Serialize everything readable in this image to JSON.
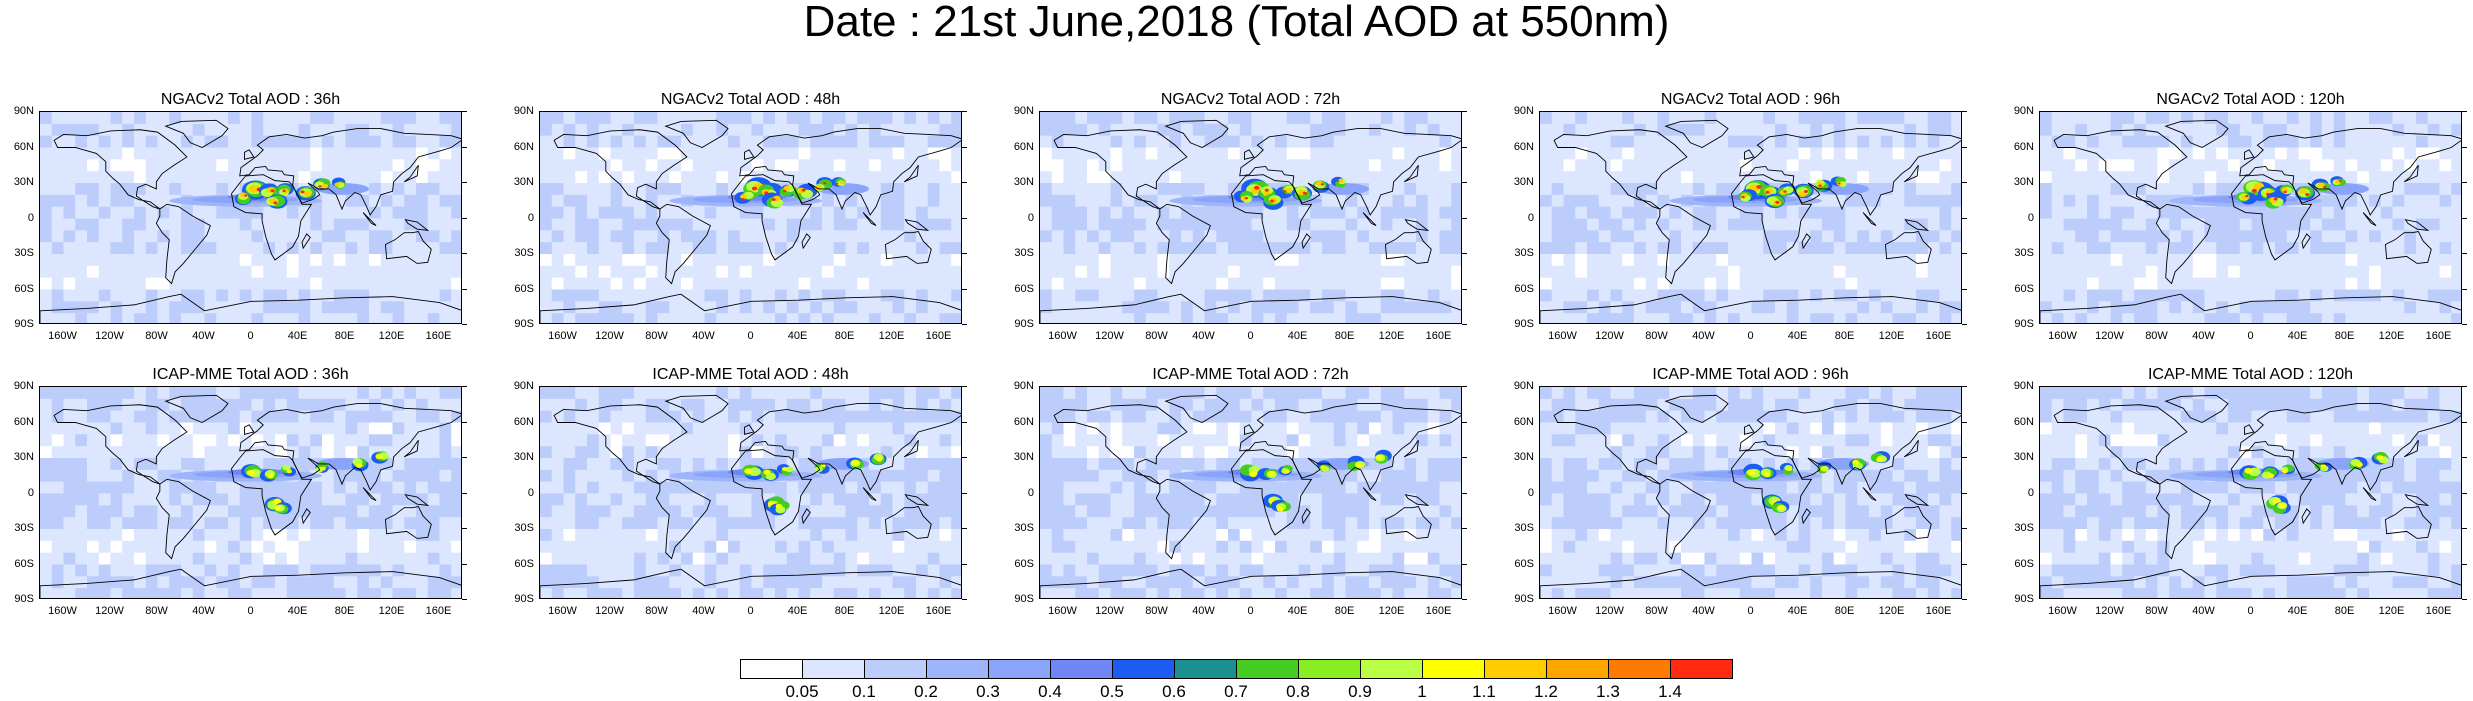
{
  "title": "Date : 21st June,2018 (Total AOD at 550nm)",
  "panels": [
    {
      "title": "NGACv2 Total AOD : 36h",
      "model": "NGACv2",
      "lead": "36h"
    },
    {
      "title": "NGACv2 Total AOD : 48h",
      "model": "NGACv2",
      "lead": "48h"
    },
    {
      "title": "NGACv2 Total AOD : 72h",
      "model": "NGACv2",
      "lead": "72h"
    },
    {
      "title": "NGACv2 Total AOD : 96h",
      "model": "NGACv2",
      "lead": "96h"
    },
    {
      "title": "NGACv2 Total AOD : 120h",
      "model": "NGACv2",
      "lead": "120h"
    },
    {
      "title": "ICAP-MME Total AOD : 36h",
      "model": "ICAP-MME",
      "lead": "36h"
    },
    {
      "title": "ICAP-MME Total AOD : 48h",
      "model": "ICAP-MME",
      "lead": "48h"
    },
    {
      "title": "ICAP-MME Total AOD : 72h",
      "model": "ICAP-MME",
      "lead": "72h"
    },
    {
      "title": "ICAP-MME Total AOD : 96h",
      "model": "ICAP-MME",
      "lead": "96h"
    },
    {
      "title": "ICAP-MME Total AOD : 120h",
      "model": "ICAP-MME",
      "lead": "120h"
    }
  ],
  "lat_labels": [
    "90N",
    "60N",
    "30N",
    "0",
    "30S",
    "60S",
    "90S"
  ],
  "lon_labels": [
    "160W",
    "120W",
    "80W",
    "40W",
    "0",
    "40E",
    "80E",
    "120E",
    "160E"
  ],
  "lon_values": [
    -160,
    -120,
    -80,
    -40,
    0,
    40,
    80,
    120,
    160
  ],
  "lat_values": [
    90,
    60,
    30,
    0,
    -30,
    -60,
    -90
  ],
  "colorbar": {
    "labels": [
      "0.05",
      "0.1",
      "0.2",
      "0.3",
      "0.4",
      "0.5",
      "0.6",
      "0.7",
      "0.8",
      "0.9",
      "1",
      "1.1",
      "1.2",
      "1.3",
      "1.4"
    ],
    "colors": [
      "#ffffff",
      "#dce6ff",
      "#bccdfc",
      "#9fb5fb",
      "#8aa4fa",
      "#6f86f5",
      "#1c5cf0",
      "#1a9090",
      "#44cc22",
      "#88ee22",
      "#bbff44",
      "#ffff00",
      "#ffcc00",
      "#ffa500",
      "#ff7a00",
      "#ff2a10"
    ]
  }
}
